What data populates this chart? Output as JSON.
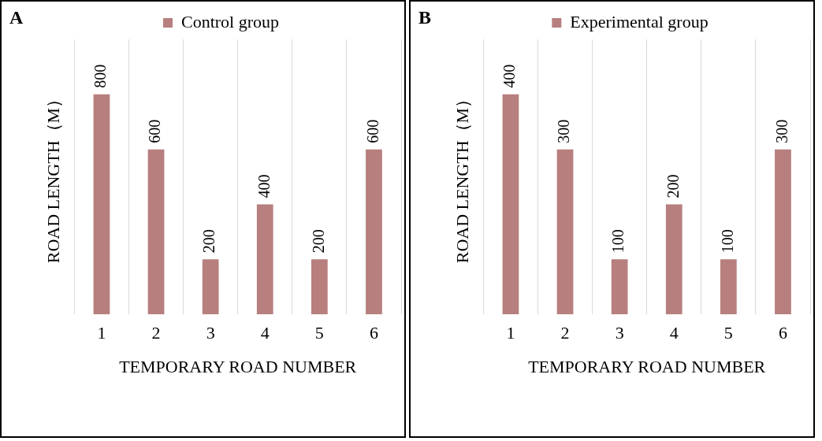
{
  "chart_data": [
    {
      "type": "bar",
      "title": "A",
      "xlabel": "TEMPORARY ROAD NUMBER",
      "ylabel": "ROAD LENGTH（M）",
      "categories": [
        "1",
        "2",
        "3",
        "4",
        "5",
        "6"
      ],
      "series": [
        {
          "name": "Control group",
          "color": "#b77f7e",
          "values": [
            800,
            600,
            200,
            400,
            200,
            600
          ]
        }
      ],
      "data_labels": true,
      "grid": "x",
      "legend": "top",
      "tick_labels": "x"
    },
    {
      "type": "bar",
      "title": "B",
      "xlabel": "TEMPORARY ROAD NUMBER",
      "ylabel": "ROAD LENGTH（M）",
      "categories": [
        "1",
        "2",
        "3",
        "4",
        "5",
        "6"
      ],
      "series": [
        {
          "name": "Experimental group",
          "color": "#b77f7e",
          "values": [
            400,
            300,
            100,
            200,
            100,
            300
          ]
        }
      ],
      "data_labels": true,
      "grid": "x",
      "legend": "top",
      "tick_labels": "x"
    }
  ]
}
